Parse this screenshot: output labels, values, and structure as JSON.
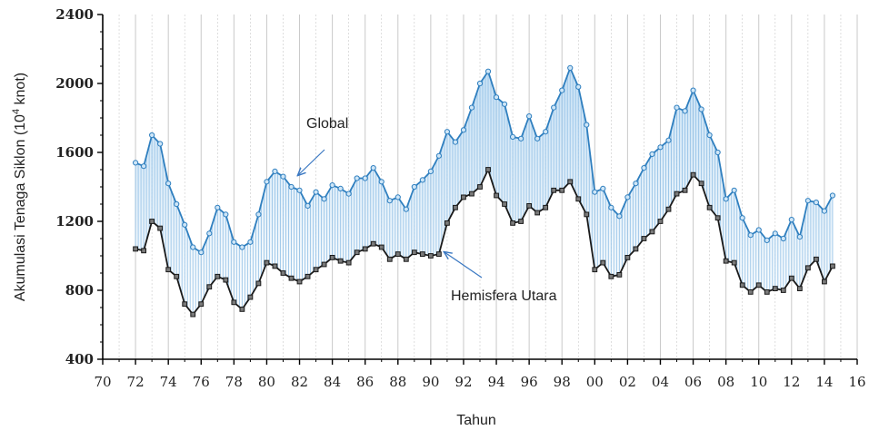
{
  "chart_data": {
    "type": "area",
    "title": "",
    "xlabel": "Tahun",
    "ylabel": "Akumulasi Tenaga Siklon (10⁴ knot)",
    "ylabel_parts": {
      "pre": "Akumulasi Tenaga Siklon (10",
      "sup": "4",
      "post": " knot)"
    },
    "xlim": [
      1970,
      2016
    ],
    "ylim": [
      400,
      2400
    ],
    "x_ticks": [
      "70",
      "72",
      "74",
      "76",
      "78",
      "80",
      "82",
      "84",
      "86",
      "88",
      "90",
      "92",
      "94",
      "96",
      "98",
      "00",
      "02",
      "04",
      "06",
      "08",
      "10",
      "12",
      "14",
      "16"
    ],
    "y_ticks": [
      "400",
      "800",
      "1200",
      "1600",
      "2000",
      "2400"
    ],
    "grid": "vertical",
    "annotations": [
      {
        "text": "Global",
        "series": "Global"
      },
      {
        "text": "Hemisfera Utara",
        "series": "Hemisfera Utara"
      }
    ],
    "series": [
      {
        "name": "Global",
        "x": [
          1972.0,
          1972.5,
          1973.0,
          1973.5,
          1974.0,
          1974.5,
          1975.0,
          1975.5,
          1976.0,
          1976.5,
          1977.0,
          1977.5,
          1978.0,
          1978.5,
          1979.0,
          1979.5,
          1980.0,
          1980.5,
          1981.0,
          1981.5,
          1982.0,
          1982.5,
          1983.0,
          1983.5,
          1984.0,
          1984.5,
          1985.0,
          1985.5,
          1986.0,
          1986.5,
          1987.0,
          1987.5,
          1988.0,
          1988.5,
          1989.0,
          1989.5,
          1990.0,
          1990.5,
          1991.0,
          1991.5,
          1992.0,
          1992.5,
          1993.0,
          1993.5,
          1994.0,
          1994.5,
          1995.0,
          1995.5,
          1996.0,
          1996.5,
          1997.0,
          1997.5,
          1998.0,
          1998.5,
          1999.0,
          1999.5,
          2000.0,
          2000.5,
          2001.0,
          2001.5,
          2002.0,
          2002.5,
          2003.0,
          2003.5,
          2004.0,
          2004.5,
          2005.0,
          2005.5,
          2006.0,
          2006.5,
          2007.0,
          2007.5,
          2008.0,
          2008.5,
          2009.0,
          2009.5,
          2010.0,
          2010.5,
          2011.0,
          2011.5,
          2012.0,
          2012.5,
          2013.0,
          2013.5,
          2014.0,
          2014.5
        ],
        "y": [
          1540,
          1520,
          1700,
          1650,
          1420,
          1300,
          1180,
          1050,
          1020,
          1130,
          1280,
          1240,
          1080,
          1050,
          1080,
          1240,
          1430,
          1490,
          1460,
          1400,
          1380,
          1290,
          1370,
          1330,
          1410,
          1390,
          1360,
          1450,
          1450,
          1510,
          1430,
          1320,
          1340,
          1270,
          1400,
          1440,
          1490,
          1580,
          1720,
          1660,
          1730,
          1860,
          2000,
          2070,
          1920,
          1880,
          1690,
          1680,
          1810,
          1680,
          1720,
          1860,
          1960,
          2090,
          1980,
          1760,
          1370,
          1390,
          1280,
          1230,
          1340,
          1420,
          1510,
          1590,
          1630,
          1670,
          1860,
          1840,
          1960,
          1850,
          1700,
          1600,
          1330,
          1380,
          1220,
          1120,
          1150,
          1090,
          1130,
          1100,
          1210,
          1110,
          1320,
          1310,
          1260,
          1350
        ]
      },
      {
        "name": "Hemisfera Utara",
        "x": [
          1972.0,
          1972.5,
          1973.0,
          1973.5,
          1974.0,
          1974.5,
          1975.0,
          1975.5,
          1976.0,
          1976.5,
          1977.0,
          1977.5,
          1978.0,
          1978.5,
          1979.0,
          1979.5,
          1980.0,
          1980.5,
          1981.0,
          1981.5,
          1982.0,
          1982.5,
          1983.0,
          1983.5,
          1984.0,
          1984.5,
          1985.0,
          1985.5,
          1986.0,
          1986.5,
          1987.0,
          1987.5,
          1988.0,
          1988.5,
          1989.0,
          1989.5,
          1990.0,
          1990.5,
          1991.0,
          1991.5,
          1992.0,
          1992.5,
          1993.0,
          1993.5,
          1994.0,
          1994.5,
          1995.0,
          1995.5,
          1996.0,
          1996.5,
          1997.0,
          1997.5,
          1998.0,
          1998.5,
          1999.0,
          1999.5,
          2000.0,
          2000.5,
          2001.0,
          2001.5,
          2002.0,
          2002.5,
          2003.0,
          2003.5,
          2004.0,
          2004.5,
          2005.0,
          2005.5,
          2006.0,
          2006.5,
          2007.0,
          2007.5,
          2008.0,
          2008.5,
          2009.0,
          2009.5,
          2010.0,
          2010.5,
          2011.0,
          2011.5,
          2012.0,
          2012.5,
          2013.0,
          2013.5,
          2014.0,
          2014.5
        ],
        "y": [
          1040,
          1030,
          1200,
          1160,
          920,
          880,
          720,
          660,
          720,
          820,
          880,
          860,
          730,
          690,
          760,
          840,
          960,
          940,
          900,
          870,
          850,
          880,
          920,
          950,
          990,
          970,
          960,
          1020,
          1040,
          1070,
          1050,
          980,
          1010,
          980,
          1020,
          1010,
          1000,
          1010,
          1190,
          1280,
          1340,
          1360,
          1400,
          1500,
          1350,
          1300,
          1190,
          1200,
          1290,
          1250,
          1280,
          1380,
          1380,
          1430,
          1330,
          1240,
          920,
          960,
          880,
          890,
          990,
          1040,
          1100,
          1140,
          1200,
          1270,
          1360,
          1380,
          1470,
          1420,
          1280,
          1220,
          970,
          960,
          830,
          790,
          830,
          790,
          810,
          800,
          870,
          810,
          930,
          980,
          850,
          940
        ]
      }
    ],
    "colors": {
      "global_line": "#2f7fbf",
      "global_marker_fill": "#cfe6f7",
      "nh_line": "#1a1a1a",
      "nh_marker_fill": "#7a7a7a",
      "fill_top": "#9cc9ec",
      "fill_bottom": "#ffffff",
      "arrow": "#3a78c2",
      "grid": "#c9c9c9",
      "axis": "#000000"
    }
  }
}
